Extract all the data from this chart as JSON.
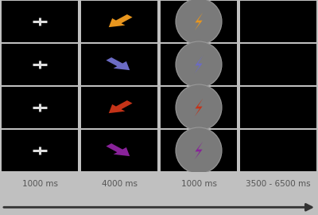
{
  "outer_bg": "#c0c0c0",
  "cell_bg": "#000000",
  "n_rows": 4,
  "n_cols": 4,
  "labels": [
    "1000 ms",
    "4000 ms",
    "1000 ms",
    "3500 - 6500 ms"
  ],
  "label_color": "#555555",
  "fixation_color": "#dddddd",
  "arrow_colors": [
    "#e8961e",
    "#6b6bc4",
    "#c43318",
    "#882299"
  ],
  "bolt_colors": [
    "#e8961e",
    "#6b6bc4",
    "#c43318",
    "#882299"
  ],
  "circle_color": "#7a7a7a",
  "arrow_directions": [
    "down-left",
    "down-right",
    "down-left",
    "down-right"
  ]
}
